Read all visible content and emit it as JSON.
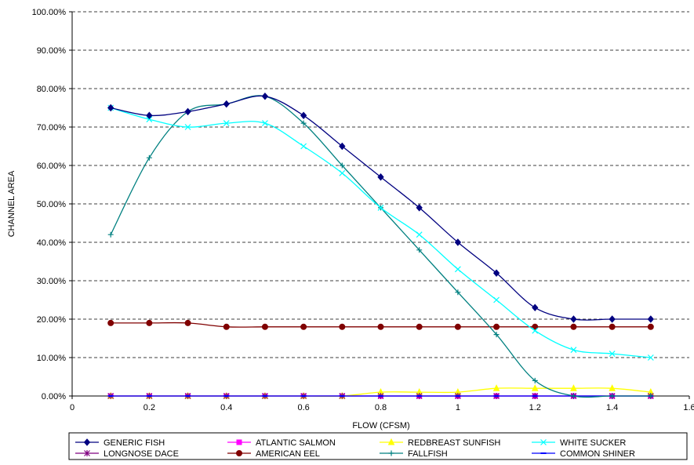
{
  "chart_data": {
    "type": "line",
    "title": "",
    "xlabel": "FLOW (CFSM)",
    "ylabel": "CHANNEL AREA",
    "xlim": [
      0,
      1.6
    ],
    "ylim": [
      0,
      100
    ],
    "x_ticks": [
      0,
      0.2,
      0.4,
      0.6,
      0.8,
      1,
      1.2,
      1.4,
      1.6
    ],
    "x_tick_labels": [
      "0",
      "0.2",
      "0.4",
      "0.6",
      "0.8",
      "1",
      "1.2",
      "1.4",
      "1.6"
    ],
    "y_ticks": [
      0,
      10,
      20,
      30,
      40,
      50,
      60,
      70,
      80,
      90,
      100
    ],
    "y_tick_labels": [
      "0.00%",
      "10.00%",
      "20.00%",
      "30.00%",
      "40.00%",
      "50.00%",
      "60.00%",
      "70.00%",
      "80.00%",
      "90.00%",
      "100.00%"
    ],
    "grid": "horizontal dashed",
    "legend_position": "bottom",
    "x": [
      0.1,
      0.2,
      0.3,
      0.4,
      0.5,
      0.6,
      0.7,
      0.8,
      0.9,
      1.0,
      1.1,
      1.2,
      1.3,
      1.4,
      1.5
    ],
    "series": [
      {
        "name": "GENERIC FISH",
        "color": "#000080",
        "marker": "diamond",
        "values": [
          75,
          73,
          74,
          76,
          78,
          73,
          65,
          57,
          49,
          40,
          32,
          23,
          20,
          20,
          20
        ]
      },
      {
        "name": "ATLANTIC SALMON",
        "color": "#FF00FF",
        "marker": "square",
        "values": [
          0,
          0,
          0,
          0,
          0,
          0,
          0,
          0,
          0,
          0,
          0,
          0,
          0,
          0,
          0
        ]
      },
      {
        "name": "REDBREAST SUNFISH",
        "color": "#FFFF00",
        "marker": "triangle",
        "values": [
          0,
          0,
          0,
          0,
          0,
          0,
          0,
          1,
          1,
          1,
          2,
          2,
          2,
          2,
          1
        ]
      },
      {
        "name": "WHITE SUCKER",
        "color": "#00FFFF",
        "marker": "x",
        "values": [
          75,
          72,
          70,
          71,
          71,
          65,
          58,
          49,
          42,
          33,
          25,
          17,
          12,
          11,
          10
        ]
      },
      {
        "name": "LONGNOSE DACE",
        "color": "#800080",
        "marker": "star",
        "values": [
          0,
          0,
          0,
          0,
          0,
          0,
          0,
          0,
          0,
          0,
          0,
          0,
          0,
          0,
          0
        ]
      },
      {
        "name": "AMERICAN EEL",
        "color": "#800000",
        "marker": "circle",
        "values": [
          19,
          19,
          19,
          18,
          18,
          18,
          18,
          18,
          18,
          18,
          18,
          18,
          18,
          18,
          18
        ]
      },
      {
        "name": "FALLFISH",
        "color": "#008080",
        "marker": "plus",
        "values": [
          42,
          62,
          74,
          76,
          78,
          71,
          60,
          49,
          38,
          27,
          16,
          4,
          0,
          0,
          0
        ]
      },
      {
        "name": "COMMON SHINER",
        "color": "#0000FF",
        "marker": "dash",
        "values": [
          0,
          0,
          0,
          0,
          0,
          0,
          0,
          0,
          0,
          0,
          0,
          0,
          0,
          0,
          0
        ]
      }
    ]
  }
}
